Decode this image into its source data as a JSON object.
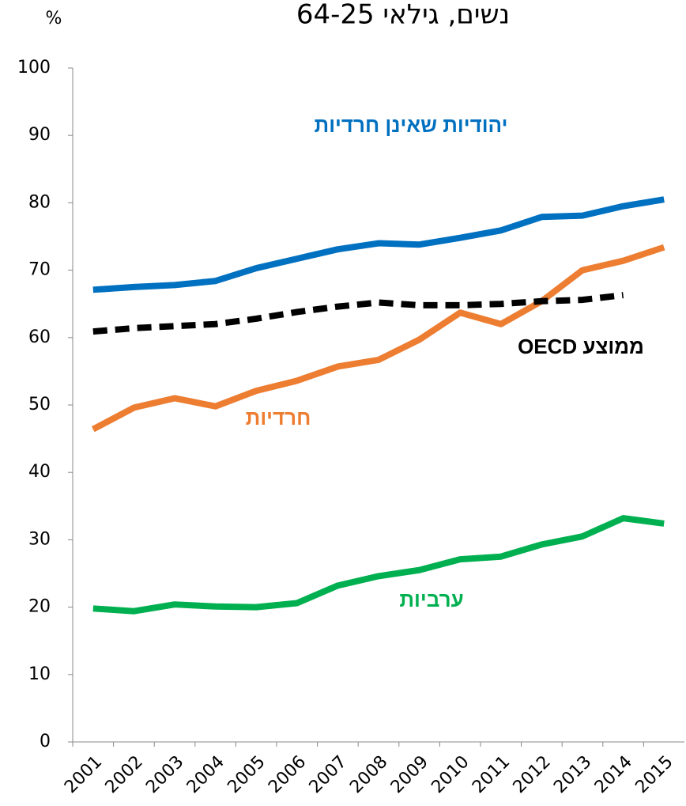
{
  "chart_data": {
    "type": "line",
    "title": "נשים, גילאי 64-25",
    "y_label": "%",
    "categories": [
      "2001",
      "2002",
      "2003",
      "2004",
      "2005",
      "2006",
      "2007",
      "2008",
      "2009",
      "2010",
      "2011",
      "2012",
      "2013",
      "2014",
      "2015"
    ],
    "series": [
      {
        "name": "יהודיות שאינן חרדיות",
        "color": "#0070c0",
        "dash": false,
        "values": [
          67.1,
          67.5,
          67.8,
          68.4,
          70.3,
          71.7,
          73.1,
          74.0,
          73.8,
          74.8,
          75.9,
          77.9,
          78.1,
          79.5,
          80.5
        ]
      },
      {
        "name": "חרדיות",
        "color": "#ed7d31",
        "dash": false,
        "values": [
          46.4,
          49.6,
          51.0,
          49.8,
          52.1,
          53.6,
          55.7,
          56.7,
          59.7,
          63.7,
          62.0,
          65.4,
          70.0,
          71.4,
          73.4
        ]
      },
      {
        "name": "ערביות",
        "color": "#00b050",
        "dash": false,
        "values": [
          19.8,
          19.4,
          20.4,
          20.1,
          20.0,
          20.6,
          23.2,
          24.6,
          25.5,
          27.1,
          27.5,
          29.3,
          30.5,
          33.2,
          32.4
        ]
      },
      {
        "name": "ממוצע OECD",
        "color": "#000000",
        "dash": true,
        "values": [
          60.9,
          61.4,
          61.7,
          62.0,
          62.8,
          63.8,
          64.6,
          65.2,
          64.8,
          64.8,
          65.0,
          65.4,
          65.6,
          66.3,
          null
        ]
      }
    ],
    "ylim": [
      0,
      100
    ],
    "yticks": [
      0,
      10,
      20,
      30,
      40,
      50,
      60,
      70,
      80,
      90,
      100
    ],
    "grid": false
  }
}
